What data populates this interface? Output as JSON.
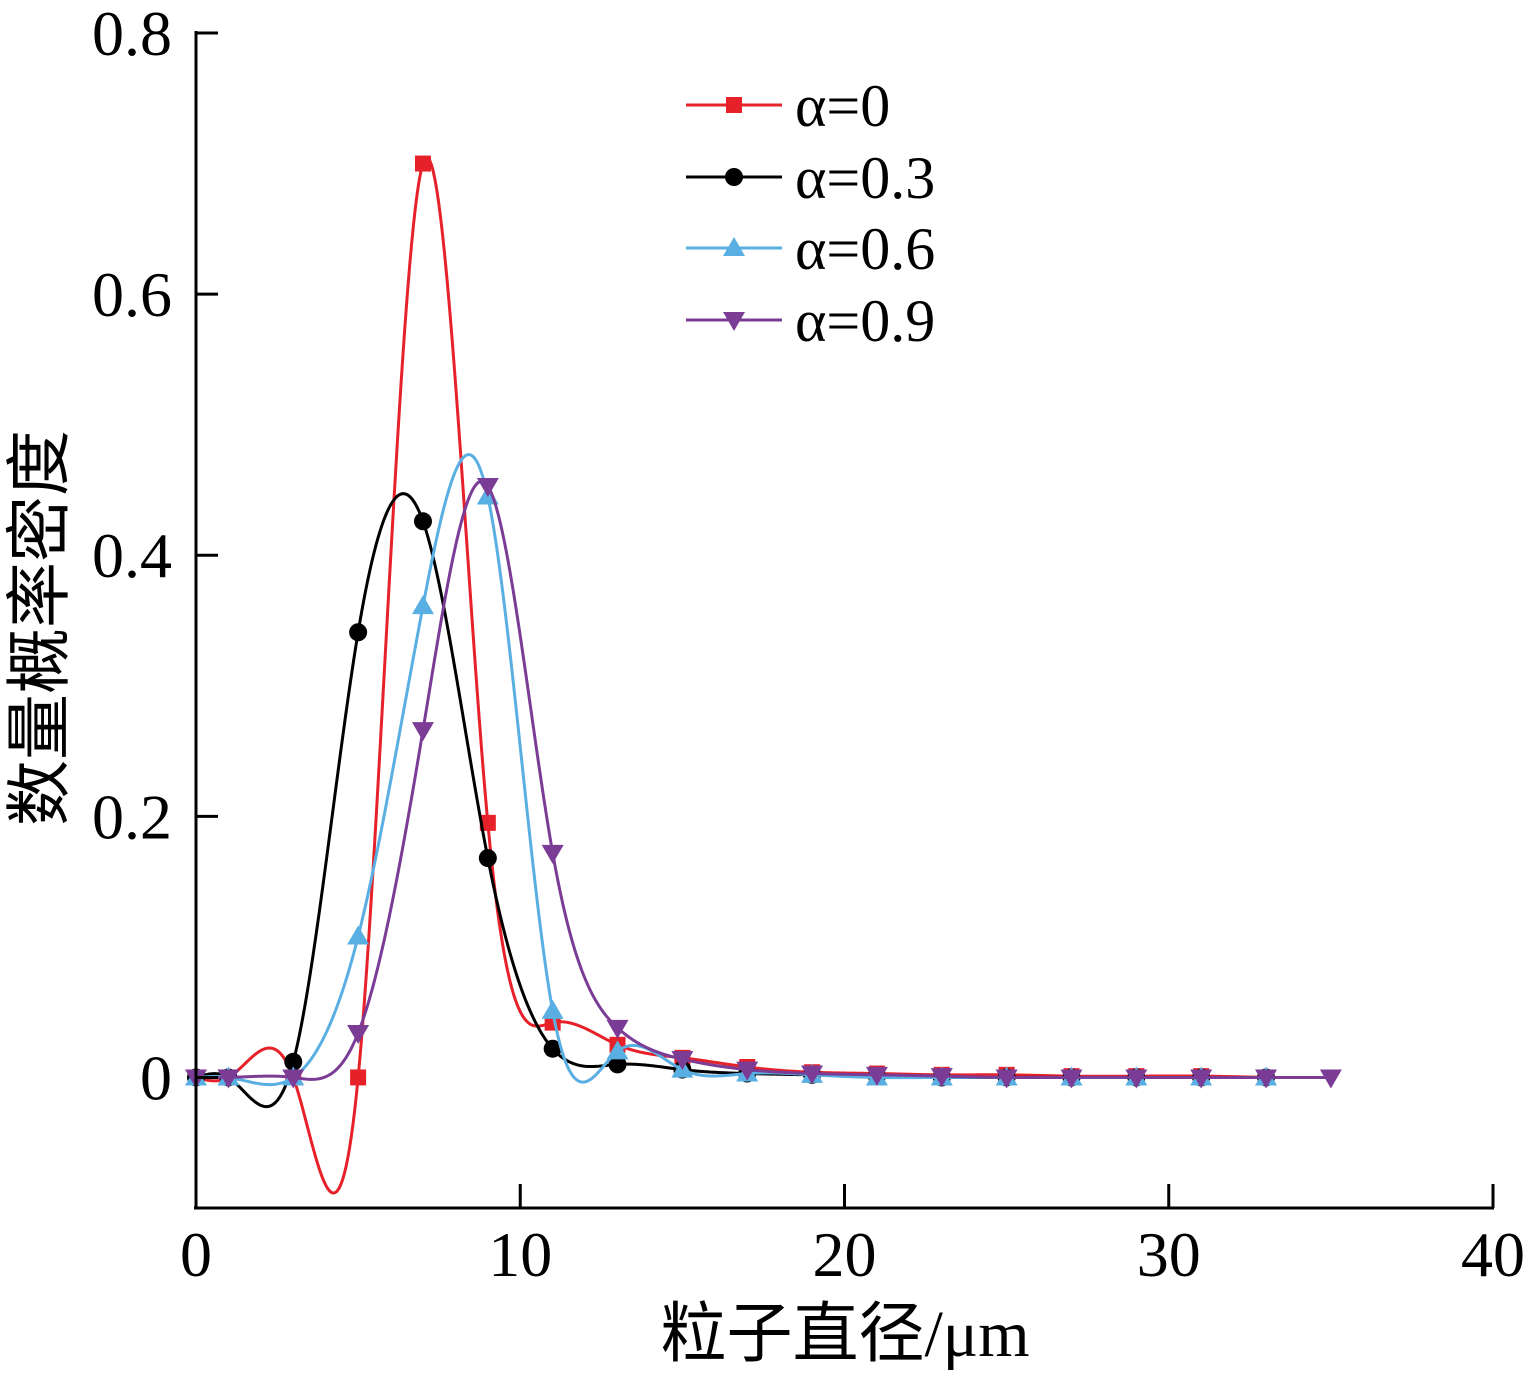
{
  "chart_data": {
    "type": "line",
    "title": "",
    "xlabel": "粒子直径/μm",
    "ylabel": "数量概率密度",
    "xlim": [
      0,
      40
    ],
    "ylim": [
      -0.1,
      0.8
    ],
    "xticks": [
      0,
      10,
      20,
      30,
      40
    ],
    "xtick_labels": [
      "0",
      "10",
      "20",
      "30",
      "40"
    ],
    "yticks": [
      0,
      0.2,
      0.4,
      0.6,
      0.8
    ],
    "ytick_labels": [
      "0",
      "0.2",
      "0.4",
      "0.6",
      "0.8"
    ],
    "grid": false,
    "legend_position": "top-center",
    "smoothing": "spline",
    "series": [
      {
        "name": "α=0",
        "color": "#e62129",
        "marker": "square",
        "x": [
          0,
          1,
          3,
          5,
          7,
          9,
          11,
          13,
          15,
          17,
          19,
          21,
          23,
          25,
          27,
          29,
          31,
          33
        ],
        "y": [
          0,
          0,
          0,
          0,
          0.7,
          0.195,
          0.042,
          0.025,
          0.015,
          0.008,
          0.004,
          0.003,
          0.002,
          0.002,
          0.001,
          0.001,
          0.001,
          0
        ]
      },
      {
        "name": "α=0.3",
        "color": "#000000",
        "marker": "circle",
        "x": [
          0,
          1,
          3,
          5,
          7,
          9,
          11,
          13,
          15,
          17,
          19,
          21,
          23,
          25,
          27,
          29,
          31,
          33
        ],
        "y": [
          0,
          0,
          0.012,
          0.341,
          0.426,
          0.168,
          0.022,
          0.01,
          0.006,
          0.003,
          0.002,
          0.001,
          0,
          0,
          0,
          0,
          0,
          0
        ]
      },
      {
        "name": "α=0.6",
        "color": "#5aafe2",
        "marker": "triangle-up",
        "x": [
          0,
          1,
          3,
          5,
          7,
          9,
          11,
          13,
          15,
          17,
          19,
          21,
          23,
          25,
          27,
          29,
          31,
          33
        ],
        "y": [
          0,
          0,
          0,
          0.108,
          0.361,
          0.445,
          0.051,
          0.02,
          0.006,
          0.003,
          0.002,
          0,
          0,
          0,
          0,
          0,
          0,
          0
        ]
      },
      {
        "name": "α=0.9",
        "color": "#7b3c96",
        "marker": "triangle-down",
        "x": [
          0,
          1,
          3,
          5,
          7,
          9,
          11,
          13,
          15,
          17,
          19,
          21,
          23,
          25,
          27,
          29,
          31,
          33,
          35
        ],
        "y": [
          0,
          0,
          0,
          0.034,
          0.266,
          0.453,
          0.172,
          0.038,
          0.014,
          0.006,
          0.003,
          0.002,
          0.001,
          0,
          0,
          0,
          0,
          0,
          0
        ]
      }
    ]
  }
}
